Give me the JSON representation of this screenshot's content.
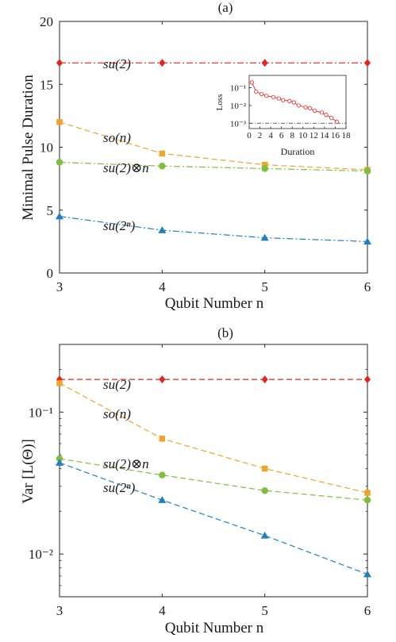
{
  "chart_data": [
    {
      "type": "line",
      "title": "(a)",
      "xlabel": "Qubit Number n",
      "ylabel": "Minimal Pulse Duration",
      "x": [
        3,
        4,
        5,
        6
      ],
      "xlim": [
        3,
        6
      ],
      "ylim": [
        0,
        20
      ],
      "xticks": [
        "3",
        "4",
        "5",
        "6"
      ],
      "yticks": [
        "0",
        "5",
        "10",
        "15",
        "20"
      ],
      "grid": false,
      "series": [
        {
          "name": "su(2)",
          "values": [
            16.7,
            16.7,
            16.7,
            16.7
          ],
          "color": "#e8231e",
          "marker": "diamond",
          "line": "dashdot"
        },
        {
          "name": "so(n)",
          "values": [
            12.0,
            9.5,
            8.6,
            8.2
          ],
          "color": "#f0a52a",
          "marker": "square",
          "line": "dashed"
        },
        {
          "name": "su(2)⊗n",
          "values": [
            8.8,
            8.5,
            8.3,
            8.1
          ],
          "color": "#7fbf3f",
          "marker": "circle",
          "line": "dashdot"
        },
        {
          "name": "su(2ⁿ)",
          "values": [
            4.5,
            3.4,
            2.8,
            2.5
          ],
          "color": "#1f80c0",
          "marker": "triangle",
          "line": "dashdot"
        }
      ],
      "inset": {
        "type": "line",
        "xlabel": "Duration",
        "ylabel": "Loss",
        "xlim": [
          0,
          18
        ],
        "ylim": [
          0.0005,
          0.5
        ],
        "yscale": "log",
        "xticks": [
          "0",
          "2",
          "4",
          "6",
          "8",
          "10",
          "12",
          "14",
          "16",
          "18"
        ],
        "yticks": [
          "10⁻³",
          "10⁻²",
          "10⁻¹"
        ],
        "threshold": 0.001,
        "x": [
          0.5,
          1.3,
          2.3,
          3.2,
          4.5,
          5.5,
          6.3,
          7.5,
          8.3,
          9.2,
          10.5,
          11.3,
          12.2,
          13.5,
          14.3,
          15.3,
          16.3
        ],
        "values": [
          0.2,
          0.06,
          0.045,
          0.035,
          0.03,
          0.025,
          0.02,
          0.018,
          0.015,
          0.01,
          0.008,
          0.007,
          0.005,
          0.004,
          0.003,
          0.002,
          0.0012
        ],
        "color": "#e8231e"
      }
    },
    {
      "type": "line",
      "title": "(b)",
      "xlabel": "Qubit Number n",
      "ylabel": "Var [L(Θ)]",
      "x": [
        3,
        4,
        5,
        6
      ],
      "xlim": [
        3,
        6
      ],
      "ylim": [
        0.005,
        0.3
      ],
      "yscale": "log",
      "xticks": [
        "3",
        "4",
        "5",
        "6"
      ],
      "yticks": [
        "10⁻²",
        "10⁻¹"
      ],
      "grid": false,
      "series": [
        {
          "name": "su(2)",
          "values": [
            0.17,
            0.17,
            0.17,
            0.17
          ],
          "color": "#e8231e",
          "marker": "diamond",
          "line": "dashed"
        },
        {
          "name": "so(n)",
          "values": [
            0.16,
            0.065,
            0.04,
            0.027
          ],
          "color": "#f0a52a",
          "marker": "square",
          "line": "dashed"
        },
        {
          "name": "su(2)⊗n",
          "values": [
            0.047,
            0.036,
            0.028,
            0.024
          ],
          "color": "#7fbf3f",
          "marker": "circle",
          "line": "dashed"
        },
        {
          "name": "su(2ⁿ)",
          "values": [
            0.044,
            0.024,
            0.0135,
            0.0072
          ],
          "color": "#1f80c0",
          "marker": "triangle",
          "line": "dashed"
        }
      ]
    }
  ]
}
